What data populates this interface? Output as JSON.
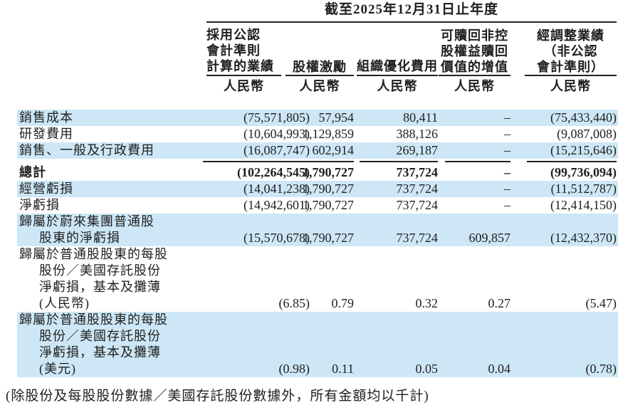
{
  "table": {
    "period_title": "截至2025年12月31日止年度",
    "currency_label": "人民幣",
    "columns": [
      {
        "lines": [
          "採用公認",
          "會計準則",
          "計算的業績"
        ]
      },
      {
        "lines": [
          "股權激勵"
        ]
      },
      {
        "lines": [
          "組織優化費用"
        ]
      },
      {
        "lines": [
          "可贖回非控",
          "股權益贖回",
          "價值的增值"
        ]
      },
      {
        "lines": [
          "經調整業績",
          "（非公認",
          "會計準則）"
        ]
      }
    ],
    "rows": [
      {
        "label_lines": [
          "銷售成本"
        ],
        "values": [
          "(75,571,805)",
          "57,954",
          "80,411",
          "–",
          "(75,433,440)"
        ]
      },
      {
        "label_lines": [
          "研發費用"
        ],
        "values": [
          "(10,604,993)",
          "1,129,859",
          "388,126",
          "–",
          "(9,087,008)"
        ]
      },
      {
        "label_lines": [
          "銷售、一般及行政費用"
        ],
        "values": [
          "(16,087,747)",
          "602,914",
          "269,187",
          "–",
          "(15,215,646)"
        ]
      },
      {
        "label_lines": [
          "總計"
        ],
        "values": [
          "(102,264,545)",
          "1,790,727",
          "737,724",
          "–",
          "(99,736,094)"
        ]
      },
      {
        "label_lines": [
          "經營虧損"
        ],
        "values": [
          "(14,041,238)",
          "1,790,727",
          "737,724",
          "–",
          "(11,512,787)"
        ]
      },
      {
        "label_lines": [
          "淨虧損"
        ],
        "values": [
          "(14,942,601)",
          "1,790,727",
          "737,724",
          "–",
          "(12,414,150)"
        ]
      },
      {
        "label_lines": [
          "歸屬於蔚來集團普通股",
          "股東的淨虧損"
        ],
        "values": [
          "(15,570,678)",
          "1,790,727",
          "737,724",
          "609,857",
          "(12,432,370)"
        ]
      },
      {
        "label_lines": [
          "歸屬於普通股股東的每股",
          "股份／美國存託股份",
          "淨虧損，基本及攤薄",
          "(人民幣)"
        ],
        "values": [
          "(6.85)",
          "0.79",
          "0.32",
          "0.27",
          "(5.47)"
        ]
      },
      {
        "label_lines": [
          "歸屬於普通股股東的每股",
          "股份／美國存託股份",
          "淨虧損，基本及攤薄",
          "(美元)"
        ],
        "values": [
          "(0.98)",
          "0.11",
          "0.05",
          "0.04",
          "(0.78)"
        ]
      }
    ]
  },
  "footnote": "(除股份及每股股份數據／美國存託股份數據外，所有金額均以千計)",
  "colors": {
    "stripe": "#cde7f6",
    "rule": "#222222",
    "text": "#1f1f1f"
  }
}
